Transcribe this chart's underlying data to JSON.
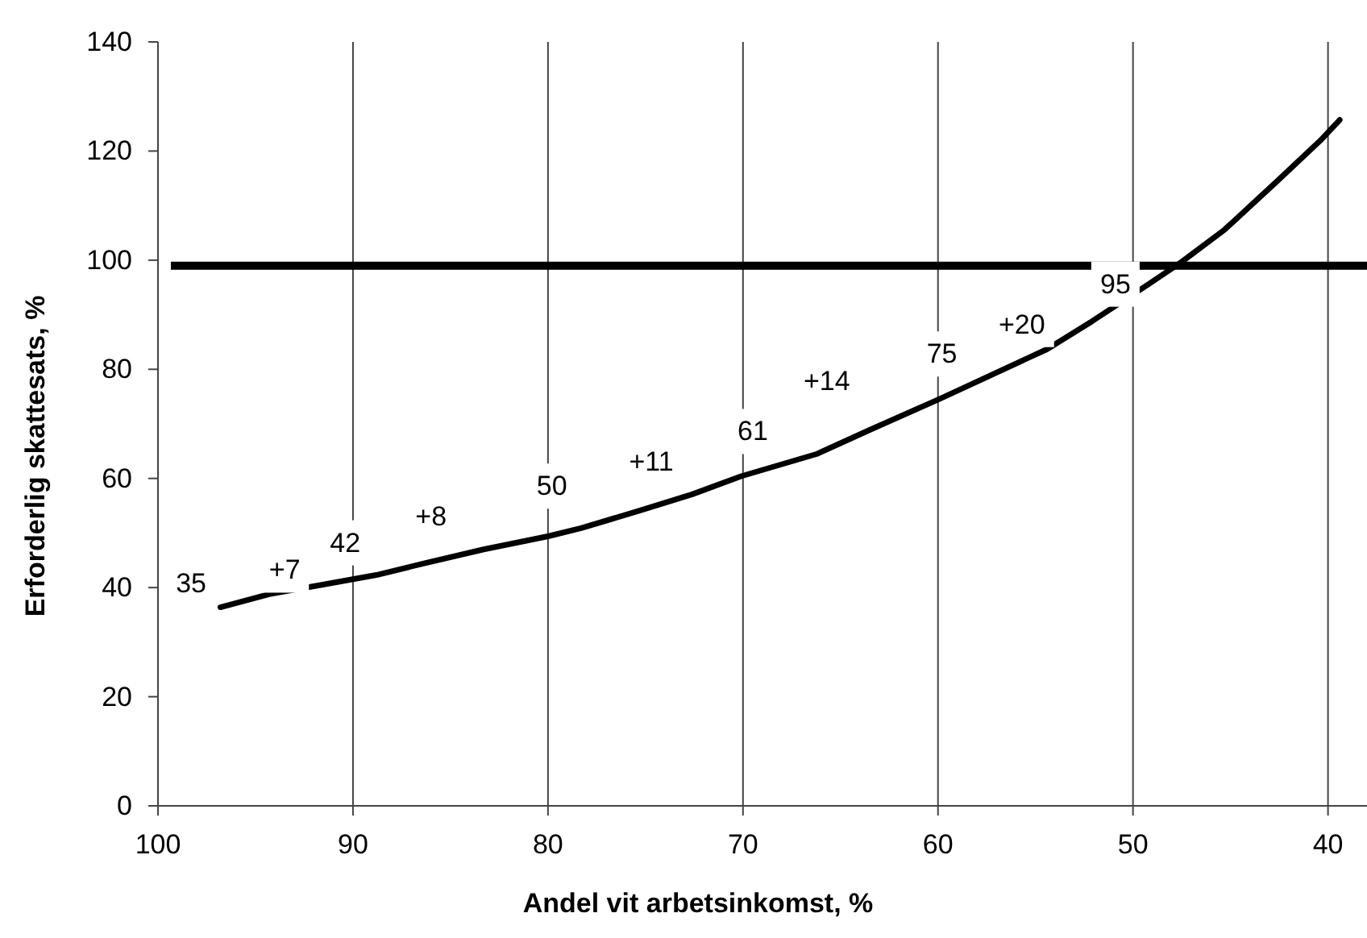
{
  "chart_data": {
    "type": "line",
    "xlabel": "Andel vit arbetsinkomst, %",
    "ylabel": "Erforderlig skattesats, %",
    "xlim": [
      100,
      38
    ],
    "xticks": [
      100,
      90,
      80,
      70,
      60,
      50,
      40
    ],
    "ylim": [
      0,
      140
    ],
    "yticks": [
      0,
      20,
      40,
      60,
      80,
      100,
      120,
      140
    ],
    "grid": "x",
    "line_style": "solid",
    "marker": "none",
    "series": [
      {
        "color": "#000000",
        "x": [
          96.8,
          94.3,
          91.6,
          88.8,
          86.4,
          83.3,
          80.0,
          78.3,
          75.3,
          72.6,
          70.1,
          66.2,
          63.5,
          59.9,
          54.4,
          52.1,
          49.2,
          47.5,
          45.3,
          42.6,
          40.4,
          39.4
        ],
        "values": [
          36.4,
          38.8,
          40.5,
          42.3,
          44.4,
          47.0,
          49.4,
          50.9,
          54.1,
          57.1,
          60.4,
          64.5,
          68.9,
          74.6,
          83.7,
          88.8,
          95.6,
          99.7,
          105.6,
          114.5,
          121.9,
          125.7
        ]
      }
    ],
    "ref_lines": [
      {
        "axis": "y",
        "value": 99,
        "color": "#000000"
      }
    ],
    "annotations": [
      {
        "text": "35",
        "x": 98.3,
        "y": 40.8
      },
      {
        "text": "+7",
        "x": 93.5,
        "y": 43.2
      },
      {
        "text": "42",
        "x": 90.4,
        "y": 48.2
      },
      {
        "text": "+8",
        "x": 86.0,
        "y": 53.0
      },
      {
        "text": "50",
        "x": 79.8,
        "y": 58.6
      },
      {
        "text": "+11",
        "x": 74.7,
        "y": 63.0
      },
      {
        "text": "61",
        "x": 69.5,
        "y": 68.6
      },
      {
        "text": "+14",
        "x": 65.7,
        "y": 77.8
      },
      {
        "text": "75",
        "x": 59.8,
        "y": 82.8
      },
      {
        "text": "+20",
        "x": 55.7,
        "y": 88.2
      },
      {
        "text": "95",
        "x": 50.9,
        "y": 95.6
      }
    ]
  }
}
